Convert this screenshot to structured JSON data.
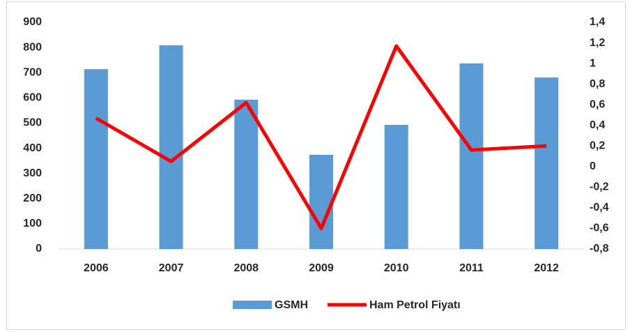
{
  "chart_data": {
    "type": "bar_line",
    "categories": [
      "2006",
      "2007",
      "2008",
      "2009",
      "2010",
      "2011",
      "2012"
    ],
    "series": [
      {
        "name": "GSMH",
        "type": "bar",
        "color": "#5b9bd5",
        "values": [
          714,
          809,
          593,
          374,
          493,
          737,
          681
        ]
      },
      {
        "name": "Ham Petrol Fiyatı",
        "type": "line",
        "axis": "y2",
        "color": "#ff0000",
        "values": [
          0.47,
          0.05,
          0.62,
          -0.6,
          1.17,
          0.16,
          0.2
        ]
      }
    ],
    "ylim": [
      0,
      900
    ],
    "yticks": [
      0,
      100,
      200,
      300,
      400,
      500,
      600,
      700,
      800,
      900
    ],
    "y2lim": [
      -0.8,
      1.4
    ],
    "y2ticks": [
      {
        "value": -0.8,
        "label": "-0,8"
      },
      {
        "value": -0.6,
        "label": "-0,6"
      },
      {
        "value": -0.4,
        "label": "-0,4"
      },
      {
        "value": -0.2,
        "label": "-0,2"
      },
      0,
      {
        "value": 0.2,
        "label": "0,2"
      },
      {
        "value": 0.4,
        "label": "0,4"
      },
      {
        "value": 0.6,
        "label": "0,6"
      },
      {
        "value": 0.8,
        "label": "0,8"
      },
      1,
      {
        "value": 1.2,
        "label": "1,2"
      },
      {
        "value": 1.4,
        "label": "1,4"
      }
    ],
    "legend": "bottom"
  }
}
